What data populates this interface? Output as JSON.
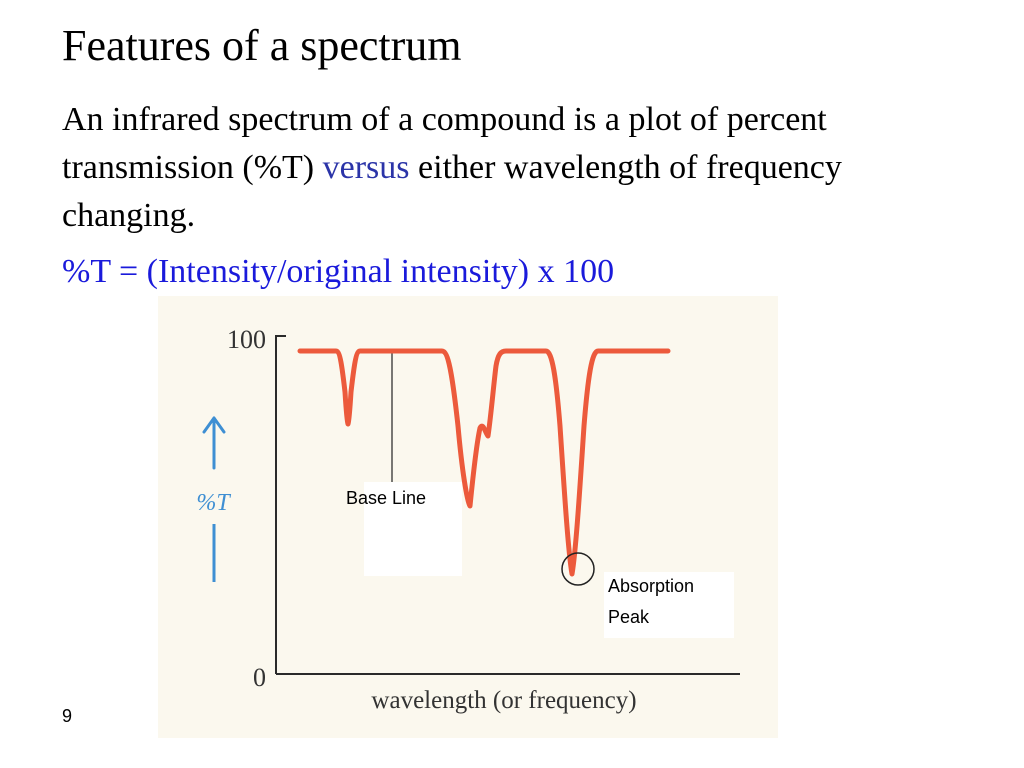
{
  "slide": {
    "title": "Features of a spectrum",
    "body_part1": "An infrared spectrum of a compound is a plot of percent transmission (%T) ",
    "body_highlight": "versus",
    "body_part2": " either wavelength of frequency changing.",
    "formula": "%T = (Intensity/original intensity) x 100",
    "page_number": "9"
  },
  "figure": {
    "y_tick_top": "100",
    "y_tick_bottom": "0",
    "y_axis_label": "%T",
    "x_axis_label": "wavelength (or frequency)",
    "callout_baseline": "Base Line",
    "callout_peak_line1": "Absorption",
    "callout_peak_line2": "Peak"
  },
  "colors": {
    "spectrum": "#ec5a3c",
    "axis_label": "#3e8fd3",
    "accent_text": "#2b34a8",
    "formula_text": "#1a1adb",
    "figure_background": "#fbf8ee"
  }
}
